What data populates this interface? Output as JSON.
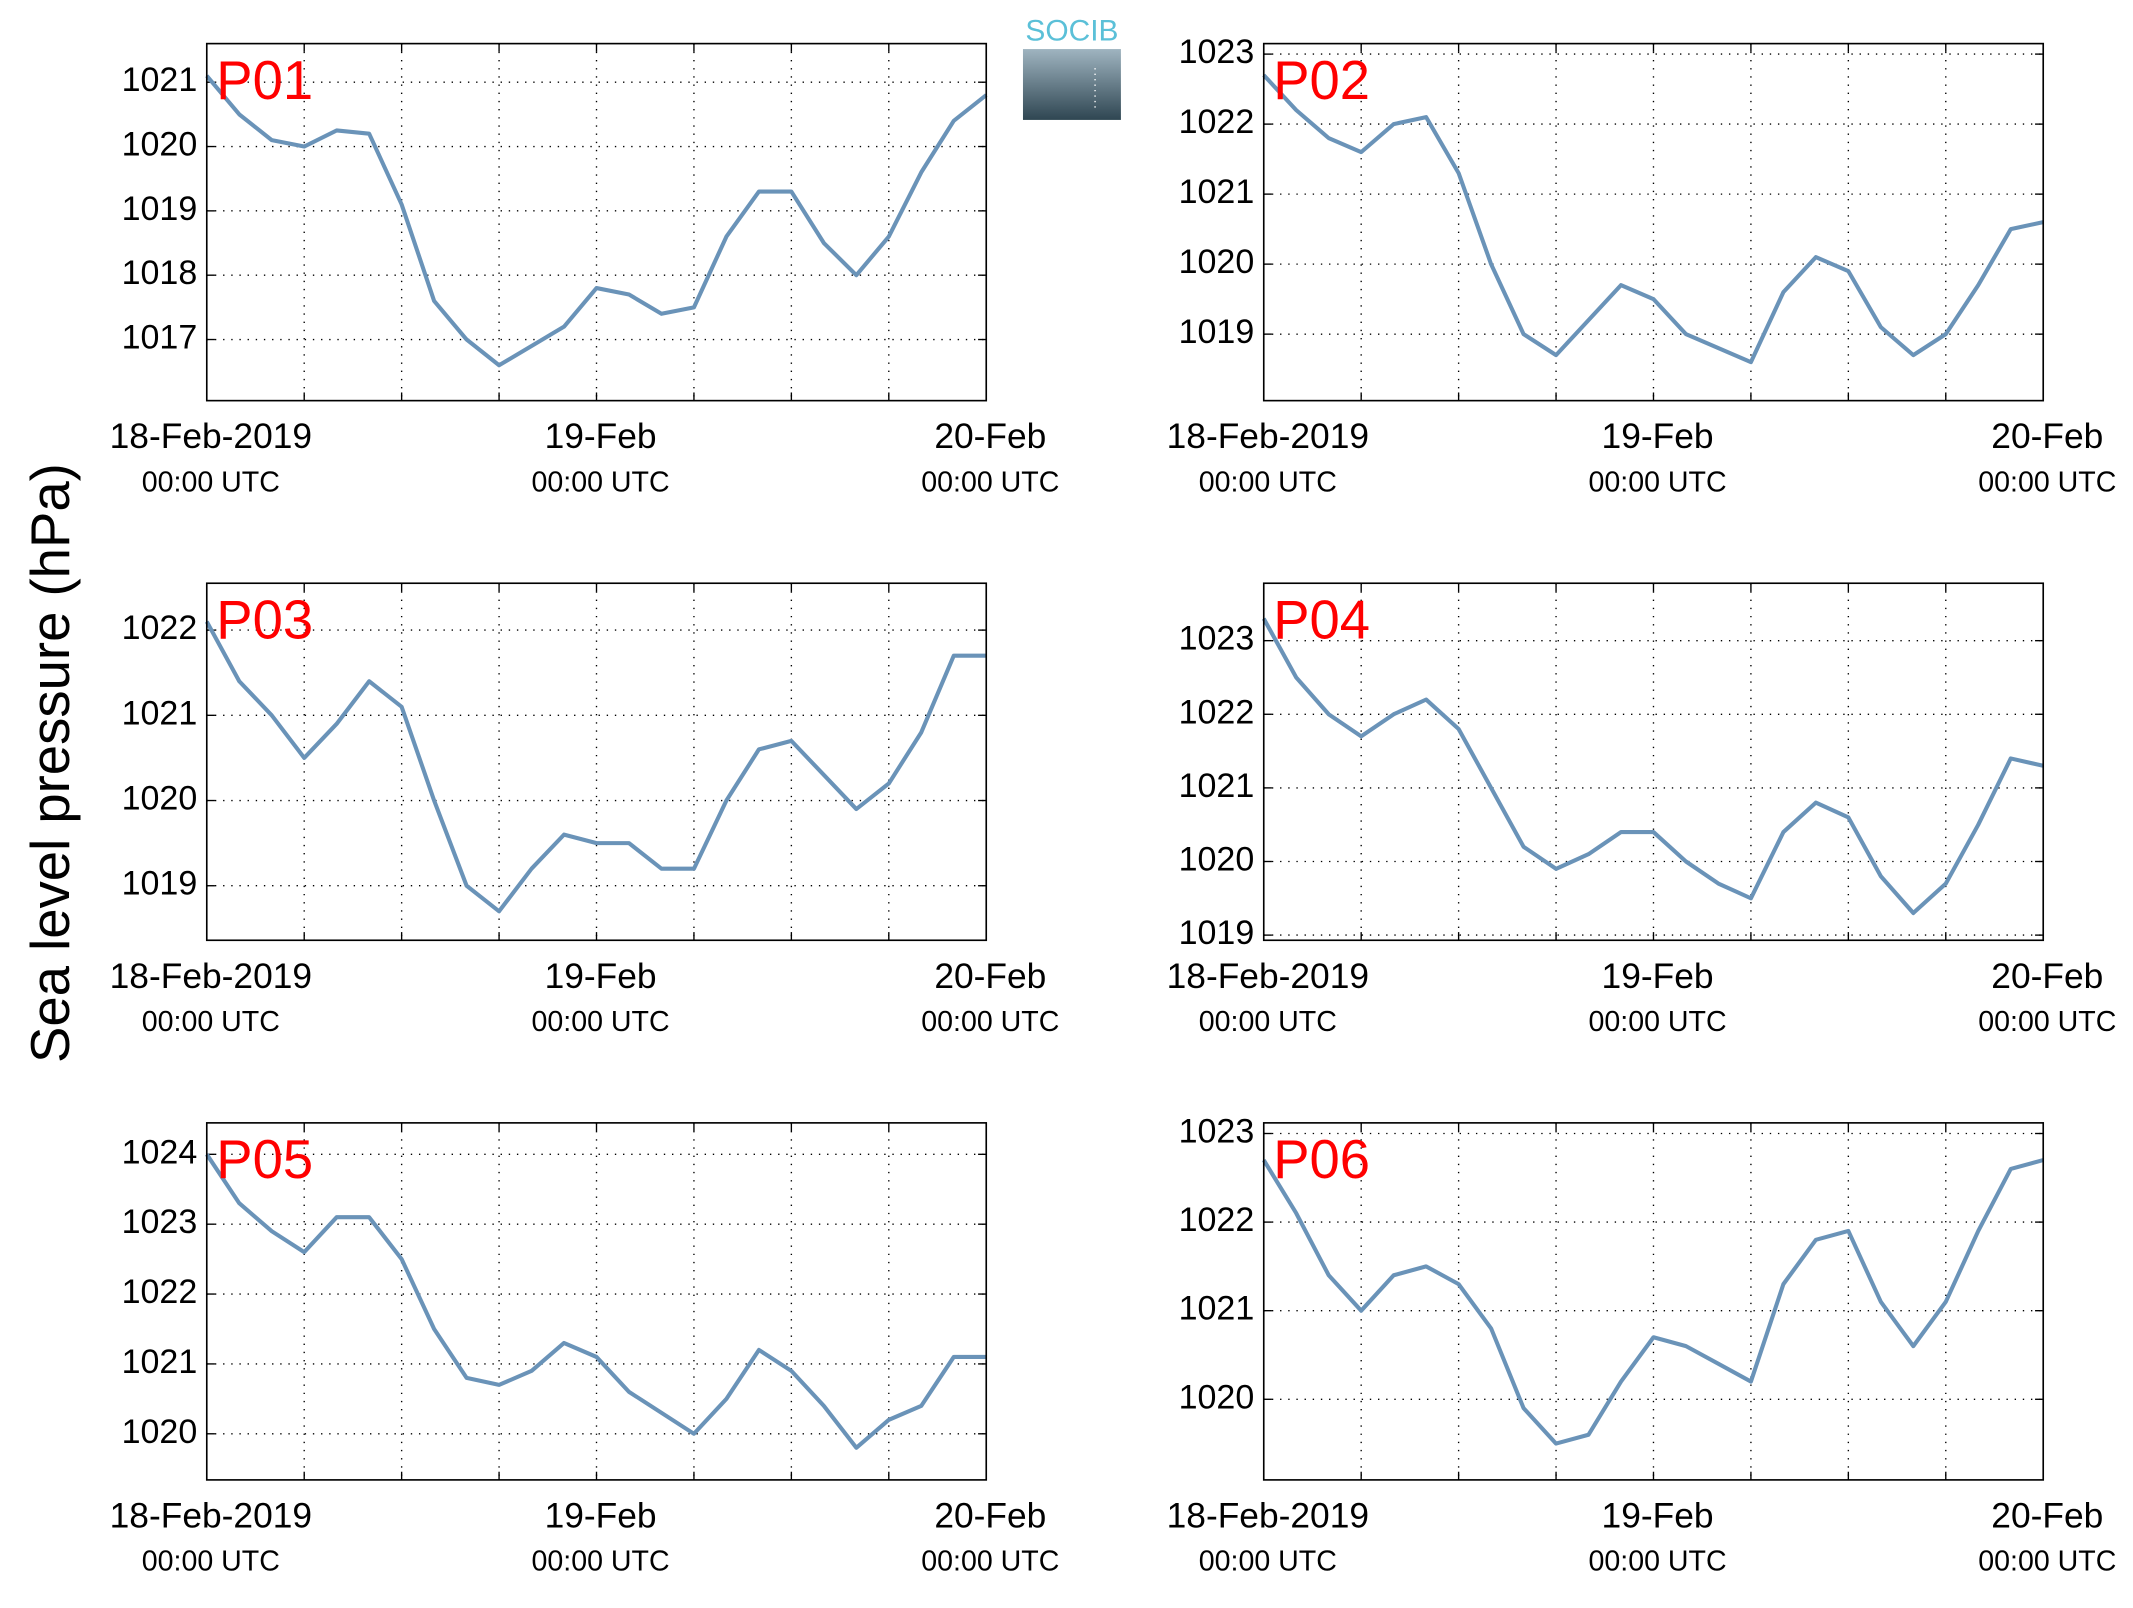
{
  "y_axis_label": "Sea level pressure (hPa)",
  "logo": "SOCIB",
  "chart_data": [
    {
      "type": "line",
      "title": "P01",
      "color": "#6a93b8",
      "grid": true,
      "x": [
        0,
        2,
        4,
        6,
        8,
        10,
        12,
        14,
        16,
        18,
        20,
        22,
        24,
        26,
        28,
        30,
        32,
        34,
        36,
        38,
        40,
        42,
        44,
        46,
        48
      ],
      "values": [
        1021.1,
        1020.5,
        1020.1,
        1020.0,
        1020.25,
        1020.2,
        1019.1,
        1017.6,
        1017.0,
        1016.6,
        1016.9,
        1017.2,
        1017.8,
        1017.7,
        1017.4,
        1017.5,
        1018.6,
        1019.3,
        1019.3,
        1018.5,
        1018.0,
        1018.6,
        1019.6,
        1020.4,
        1020.8
      ],
      "xlim": [
        0,
        48
      ],
      "xticks": [
        {
          "value": 0,
          "label": "18-Feb-2019"
        },
        {
          "value": 24,
          "label": "19-Feb"
        },
        {
          "value": 48,
          "label": "20-Feb"
        }
      ],
      "xtick_sublabels": [
        "00:00 UTC",
        "00:00 UTC",
        "00:00 UTC"
      ],
      "xgrid": [
        6,
        12,
        18,
        30,
        36,
        42
      ],
      "ylim": [
        1016.05,
        1021.6
      ],
      "yticks": [
        1017,
        1018,
        1019,
        1020,
        1021
      ]
    },
    {
      "type": "line",
      "title": "P02",
      "color": "#6a93b8",
      "grid": true,
      "x": [
        0,
        2,
        4,
        6,
        8,
        10,
        12,
        14,
        16,
        18,
        20,
        22,
        24,
        26,
        28,
        30,
        32,
        34,
        36,
        38,
        40,
        42,
        44,
        46,
        48
      ],
      "values": [
        1022.7,
        1022.2,
        1021.8,
        1021.6,
        1022.0,
        1022.1,
        1021.3,
        1020.0,
        1019.0,
        1018.7,
        1019.2,
        1019.7,
        1019.5,
        1019.0,
        1018.8,
        1018.6,
        1019.6,
        1020.1,
        1019.9,
        1019.1,
        1018.7,
        1019.0,
        1019.7,
        1020.5,
        1020.6
      ],
      "xlim": [
        0,
        48
      ],
      "xticks": [
        {
          "value": 0,
          "label": "18-Feb-2019"
        },
        {
          "value": 24,
          "label": "19-Feb"
        },
        {
          "value": 48,
          "label": "20-Feb"
        }
      ],
      "xtick_sublabels": [
        "00:00 UTC",
        "00:00 UTC",
        "00:00 UTC"
      ],
      "xgrid": [
        6,
        12,
        18,
        30,
        36,
        42
      ],
      "ylim": [
        1018.05,
        1023.15
      ],
      "yticks": [
        1019,
        1020,
        1021,
        1022,
        1023
      ]
    },
    {
      "type": "line",
      "title": "P03",
      "color": "#6a93b8",
      "grid": true,
      "x": [
        0,
        2,
        4,
        6,
        8,
        10,
        12,
        14,
        16,
        18,
        20,
        22,
        24,
        26,
        28,
        30,
        32,
        34,
        36,
        38,
        40,
        42,
        44,
        46,
        48
      ],
      "values": [
        1022.1,
        1021.4,
        1021.0,
        1020.5,
        1020.9,
        1021.4,
        1021.1,
        1020.0,
        1019.0,
        1018.7,
        1019.2,
        1019.6,
        1019.5,
        1019.5,
        1019.2,
        1019.2,
        1020.0,
        1020.6,
        1020.7,
        1020.3,
        1019.9,
        1020.2,
        1020.8,
        1021.7,
        1021.7
      ],
      "xlim": [
        0,
        48
      ],
      "xticks": [
        {
          "value": 0,
          "label": "18-Feb-2019"
        },
        {
          "value": 24,
          "label": "19-Feb"
        },
        {
          "value": 48,
          "label": "20-Feb"
        }
      ],
      "xtick_sublabels": [
        "00:00 UTC",
        "00:00 UTC",
        "00:00 UTC"
      ],
      "xgrid": [
        6,
        12,
        18,
        30,
        36,
        42
      ],
      "ylim": [
        1018.36,
        1022.55
      ],
      "yticks": [
        1019,
        1020,
        1021,
        1022
      ]
    },
    {
      "type": "line",
      "title": "P04",
      "color": "#6a93b8",
      "grid": true,
      "x": [
        0,
        2,
        4,
        6,
        8,
        10,
        12,
        14,
        16,
        18,
        20,
        22,
        24,
        26,
        28,
        30,
        32,
        34,
        36,
        38,
        40,
        42,
        44,
        46,
        48
      ],
      "values": [
        1023.3,
        1022.5,
        1022.0,
        1021.7,
        1022.0,
        1022.2,
        1021.8,
        1021.0,
        1020.2,
        1019.9,
        1020.1,
        1020.4,
        1020.4,
        1020.0,
        1019.7,
        1019.5,
        1020.4,
        1020.8,
        1020.6,
        1019.8,
        1019.3,
        1019.7,
        1020.5,
        1021.4,
        1021.3
      ],
      "xlim": [
        0,
        48
      ],
      "xticks": [
        {
          "value": 0,
          "label": "18-Feb-2019"
        },
        {
          "value": 24,
          "label": "19-Feb"
        },
        {
          "value": 48,
          "label": "20-Feb"
        }
      ],
      "xtick_sublabels": [
        "00:00 UTC",
        "00:00 UTC",
        "00:00 UTC"
      ],
      "xgrid": [
        6,
        12,
        18,
        30,
        36,
        42
      ],
      "ylim": [
        1018.93,
        1023.78
      ],
      "yticks": [
        1019,
        1020,
        1021,
        1022,
        1023
      ]
    },
    {
      "type": "line",
      "title": "P05",
      "color": "#6a93b8",
      "grid": true,
      "x": [
        0,
        2,
        4,
        6,
        8,
        10,
        12,
        14,
        16,
        18,
        20,
        22,
        24,
        26,
        28,
        30,
        32,
        34,
        36,
        38,
        40,
        42,
        44,
        46,
        48
      ],
      "values": [
        1024.0,
        1023.3,
        1022.9,
        1022.6,
        1023.1,
        1023.1,
        1022.5,
        1021.5,
        1020.8,
        1020.7,
        1020.9,
        1021.3,
        1021.1,
        1020.6,
        1020.3,
        1020.0,
        1020.5,
        1021.2,
        1020.9,
        1020.4,
        1019.8,
        1020.2,
        1020.4,
        1021.1,
        1021.1
      ],
      "xlim": [
        0,
        48
      ],
      "xticks": [
        {
          "value": 0,
          "label": "18-Feb-2019"
        },
        {
          "value": 24,
          "label": "19-Feb"
        },
        {
          "value": 48,
          "label": "20-Feb"
        }
      ],
      "xtick_sublabels": [
        "00:00 UTC",
        "00:00 UTC",
        "00:00 UTC"
      ],
      "xgrid": [
        6,
        12,
        18,
        30,
        36,
        42
      ],
      "ylim": [
        1019.34,
        1024.45
      ],
      "yticks": [
        1020,
        1021,
        1022,
        1023,
        1024
      ]
    },
    {
      "type": "line",
      "title": "P06",
      "color": "#6a93b8",
      "grid": true,
      "x": [
        0,
        2,
        4,
        6,
        8,
        10,
        12,
        14,
        16,
        18,
        20,
        22,
        24,
        26,
        28,
        30,
        32,
        34,
        36,
        38,
        40,
        42,
        44,
        46,
        48
      ],
      "values": [
        1022.7,
        1022.1,
        1021.4,
        1021.0,
        1021.4,
        1021.5,
        1021.3,
        1020.8,
        1019.9,
        1019.5,
        1019.6,
        1020.2,
        1020.7,
        1020.6,
        1020.4,
        1020.2,
        1021.3,
        1021.8,
        1021.9,
        1021.1,
        1020.6,
        1021.1,
        1021.9,
        1022.6,
        1022.7
      ],
      "xlim": [
        0,
        48
      ],
      "xticks": [
        {
          "value": 0,
          "label": "18-Feb-2019"
        },
        {
          "value": 24,
          "label": "19-Feb"
        },
        {
          "value": 48,
          "label": "20-Feb"
        }
      ],
      "xtick_sublabels": [
        "00:00 UTC",
        "00:00 UTC",
        "00:00 UTC"
      ],
      "xgrid": [
        6,
        12,
        18,
        30,
        36,
        42
      ],
      "ylim": [
        1019.09,
        1023.12
      ],
      "yticks": [
        1020,
        1021,
        1022,
        1023
      ]
    }
  ]
}
